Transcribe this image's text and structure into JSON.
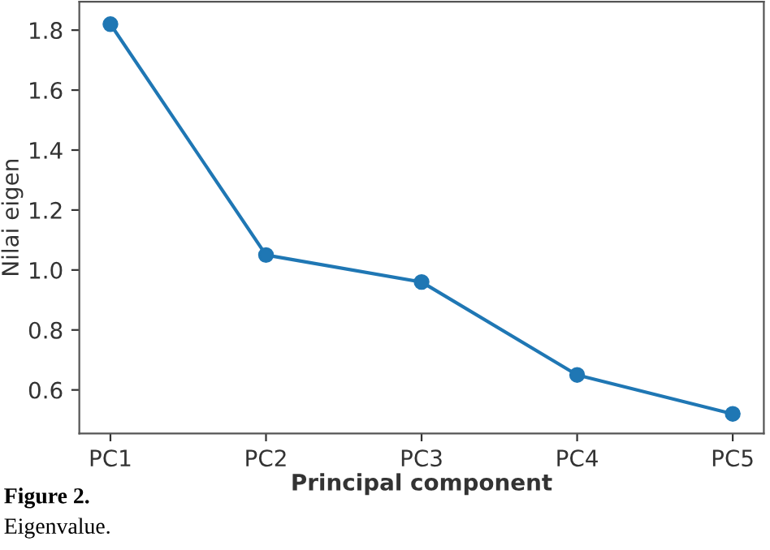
{
  "chart_data": {
    "type": "line",
    "xlabel": "Principal component",
    "ylabel": "Nilai eigen",
    "categories": [
      "PC1",
      "PC2",
      "PC3",
      "PC4",
      "PC5"
    ],
    "series": [
      {
        "color": "#1f77b4",
        "values": [
          1.82,
          1.05,
          0.96,
          0.65,
          0.52
        ]
      }
    ],
    "ylim": [
      0.455,
      1.895
    ],
    "yticks": [
      0.6,
      0.8,
      {
        "value": 1.0,
        "label": "1.0"
      },
      1.2,
      1.4,
      1.6,
      1.8
    ],
    "marker": "circle",
    "line_style": "solid",
    "grid": false,
    "legend": false,
    "annotations": [
      "Figure 2.",
      "Eigenvalue."
    ]
  }
}
